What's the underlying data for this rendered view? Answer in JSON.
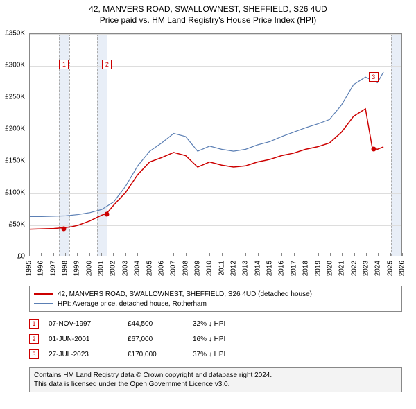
{
  "title_main": "42, MANVERS ROAD, SWALLOWNEST, SHEFFIELD, S26 4UD",
  "title_sub": "Price paid vs. HM Land Registry's House Price Index (HPI)",
  "chart": {
    "type": "line",
    "x_min": 1995,
    "x_max": 2026,
    "y_min": 0,
    "y_max": 350000,
    "y_ticks": [
      0,
      50000,
      100000,
      150000,
      200000,
      250000,
      300000,
      350000
    ],
    "y_tick_labels": [
      "£0",
      "£50K",
      "£100K",
      "£150K",
      "£200K",
      "£250K",
      "£300K",
      "£350K"
    ],
    "x_ticks": [
      1995,
      1996,
      1997,
      1998,
      1999,
      2000,
      2001,
      2002,
      2003,
      2004,
      2005,
      2006,
      2007,
      2008,
      2009,
      2010,
      2011,
      2012,
      2013,
      2014,
      2015,
      2016,
      2017,
      2018,
      2019,
      2020,
      2021,
      2022,
      2023,
      2024,
      2025,
      2026
    ],
    "grid_color": "#dddddd",
    "background_color": "#ffffff",
    "shade_color": "#e8eef7",
    "shade_ranges": [
      [
        1997.4,
        1998.3
      ],
      [
        2000.6,
        2001.4
      ],
      [
        2025.0,
        2026.0
      ]
    ],
    "series": [
      {
        "name": "property",
        "label": "42, MANVERS ROAD, SWALLOWNEST, SHEFFIELD, S26 4UD (detached house)",
        "color": "#cc0000",
        "width": 1.5,
        "points": [
          [
            1995,
            42000
          ],
          [
            1996,
            42500
          ],
          [
            1997,
            43000
          ],
          [
            1997.85,
            44500
          ],
          [
            1998.5,
            46000
          ],
          [
            1999,
            48000
          ],
          [
            2000,
            55000
          ],
          [
            2001,
            64000
          ],
          [
            2001.42,
            67000
          ],
          [
            2002,
            80000
          ],
          [
            2003,
            100000
          ],
          [
            2004,
            128000
          ],
          [
            2005,
            148000
          ],
          [
            2006,
            155000
          ],
          [
            2007,
            163000
          ],
          [
            2008,
            158000
          ],
          [
            2009,
            140000
          ],
          [
            2010,
            148000
          ],
          [
            2011,
            143000
          ],
          [
            2012,
            140000
          ],
          [
            2013,
            142000
          ],
          [
            2014,
            148000
          ],
          [
            2015,
            152000
          ],
          [
            2016,
            158000
          ],
          [
            2017,
            162000
          ],
          [
            2018,
            168000
          ],
          [
            2019,
            172000
          ],
          [
            2020,
            178000
          ],
          [
            2021,
            195000
          ],
          [
            2022,
            220000
          ],
          [
            2023,
            232000
          ],
          [
            2023.57,
            170000
          ],
          [
            2024,
            168000
          ],
          [
            2024.5,
            172000
          ]
        ]
      },
      {
        "name": "hpi",
        "label": "HPI: Average price, detached house, Rotherham",
        "color": "#5b7fb4",
        "width": 1.2,
        "points": [
          [
            1995,
            62000
          ],
          [
            1996,
            62000
          ],
          [
            1997,
            62500
          ],
          [
            1998,
            63000
          ],
          [
            1999,
            65000
          ],
          [
            2000,
            68000
          ],
          [
            2001,
            73000
          ],
          [
            2002,
            85000
          ],
          [
            2003,
            110000
          ],
          [
            2004,
            142000
          ],
          [
            2005,
            165000
          ],
          [
            2006,
            178000
          ],
          [
            2007,
            193000
          ],
          [
            2008,
            188000
          ],
          [
            2009,
            165000
          ],
          [
            2010,
            173000
          ],
          [
            2011,
            168000
          ],
          [
            2012,
            165000
          ],
          [
            2013,
            168000
          ],
          [
            2014,
            175000
          ],
          [
            2015,
            180000
          ],
          [
            2016,
            188000
          ],
          [
            2017,
            195000
          ],
          [
            2018,
            202000
          ],
          [
            2019,
            208000
          ],
          [
            2020,
            215000
          ],
          [
            2021,
            238000
          ],
          [
            2022,
            270000
          ],
          [
            2023,
            282000
          ],
          [
            2024,
            273000
          ],
          [
            2024.5,
            290000
          ]
        ]
      }
    ],
    "markers": [
      {
        "n": "1",
        "x": 1997.85,
        "y": 44500,
        "box_y": 310000
      },
      {
        "n": "2",
        "x": 2001.42,
        "y": 67000,
        "box_y": 310000
      },
      {
        "n": "3",
        "x": 2023.57,
        "y": 170000,
        "box_y": 290000
      }
    ]
  },
  "legend": {
    "series": [
      {
        "color": "#cc0000",
        "label": "42, MANVERS ROAD, SWALLOWNEST, SHEFFIELD, S26 4UD (detached house)"
      },
      {
        "color": "#5b7fb4",
        "label": "HPI: Average price, detached house, Rotherham"
      }
    ]
  },
  "events": [
    {
      "n": "1",
      "date": "07-NOV-1997",
      "price": "£44,500",
      "diff": "32% ↓ HPI"
    },
    {
      "n": "2",
      "date": "01-JUN-2001",
      "price": "£67,000",
      "diff": "16% ↓ HPI"
    },
    {
      "n": "3",
      "date": "27-JUL-2023",
      "price": "£170,000",
      "diff": "37% ↓ HPI"
    }
  ],
  "attribution_line1": "Contains HM Land Registry data © Crown copyright and database right 2024.",
  "attribution_line2": "This data is licensed under the Open Government Licence v3.0."
}
